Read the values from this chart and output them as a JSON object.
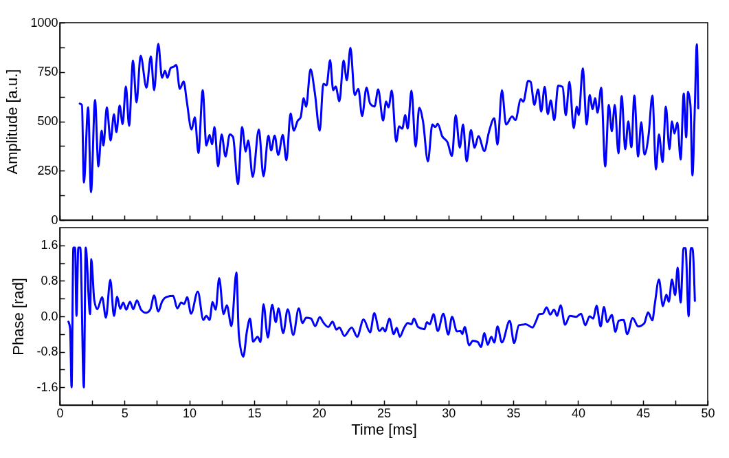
{
  "chart_data": [
    {
      "type": "line",
      "ylabel": "Amplitude [a.u.]",
      "xlim": [
        0,
        50
      ],
      "ylim": [
        0,
        1000
      ],
      "tick_labels": "y",
      "grid": false,
      "marker": "none",
      "line_style": "solid",
      "xticks": [
        0,
        {
          "value": 2.5,
          "label": null
        },
        {
          "value": 5,
          "label": null
        },
        {
          "value": 7.5,
          "label": null
        },
        {
          "value": 10,
          "label": null
        },
        {
          "value": 12.5,
          "label": null
        },
        {
          "value": 15,
          "label": null
        },
        {
          "value": 17.5,
          "label": null
        },
        {
          "value": 20,
          "label": null
        },
        {
          "value": 22.5,
          "label": null
        },
        {
          "value": 25,
          "label": null
        },
        {
          "value": 27.5,
          "label": null
        },
        {
          "value": 30,
          "label": null
        },
        {
          "value": 32.5,
          "label": null
        },
        {
          "value": 35,
          "label": null
        },
        {
          "value": 37.5,
          "label": null
        },
        {
          "value": 40,
          "label": null
        },
        {
          "value": 42.5,
          "label": null
        },
        {
          "value": 45,
          "label": null
        },
        {
          "value": 47.5,
          "label": null
        },
        {
          "value": 50,
          "label": null
        }
      ],
      "yticks": [
        0,
        {
          "value": 125,
          "label": null
        },
        250,
        {
          "value": 375,
          "label": null
        },
        500,
        {
          "value": 625,
          "label": null
        },
        750,
        {
          "value": 875,
          "label": null
        },
        1000
      ],
      "series": [
        {
          "color": "#0000ff",
          "x": [
            1.54,
            1.71,
            1.86,
            2.19,
            2.41,
            2.72,
            2.98,
            3.23,
            3.37,
            3.63,
            3.92,
            4.18,
            4.37,
            4.62,
            4.85,
            5.1,
            5.35,
            5.65,
            5.92,
            6.24,
            6.69,
            7.03,
            7.28,
            7.6,
            7.89,
            8.12,
            8.31,
            8.56,
            8.8,
            8.99,
            9.26,
            9.56,
            9.79,
            10.17,
            10.42,
            10.7,
            11.03,
            11.31,
            11.56,
            11.75,
            11.94,
            12.22,
            12.49,
            12.79,
            13.12,
            13.37,
            13.75,
            14.07,
            14.35,
            14.54,
            14.89,
            15.36,
            15.72,
            16.1,
            16.31,
            16.58,
            16.86,
            17.21,
            17.49,
            17.81,
            18.06,
            18.35,
            18.59,
            18.82,
            19.01,
            19.35,
            19.68,
            20.06,
            20.34,
            20.59,
            20.86,
            21.1,
            21.29,
            21.58,
            21.9,
            22.15,
            22.43,
            22.76,
            23.04,
            23.33,
            23.67,
            23.95,
            24.29,
            24.57,
            24.95,
            25.18,
            25.37,
            25.62,
            25.96,
            26.19,
            26.43,
            26.66,
            26.85,
            27.14,
            27.46,
            27.74,
            28.03,
            28.41,
            28.75,
            28.98,
            29.17,
            29.51,
            29.92,
            30.27,
            30.55,
            30.87,
            31.12,
            31.4,
            31.73,
            32.01,
            32.31,
            32.77,
            33.11,
            33.53,
            33.78,
            34.12,
            34.44,
            34.91,
            35.16,
            35.58,
            35.77,
            36.15,
            36.34,
            36.62,
            36.91,
            37.15,
            37.42,
            37.66,
            37.89,
            38.16,
            38.46,
            38.8,
            39.05,
            39.33,
            39.66,
            39.9,
            40.05,
            40.36,
            40.66,
            40.89,
            41.12,
            41.31,
            41.5,
            41.78,
            42.09,
            42.37,
            42.6,
            42.83,
            43.11,
            43.36,
            43.64,
            43.87,
            44.11,
            44.34,
            44.63,
            44.87,
            45.12,
            45.44,
            45.73,
            46.01,
            46.24,
            46.52,
            46.77,
            47.05,
            47.24,
            47.43,
            47.66,
            47.91,
            48.15,
            48.34,
            48.48,
            48.67,
            48.82,
            49.01,
            49.16,
            49.27
          ],
          "values": [
            590,
            583,
            191,
            571,
            141,
            608,
            272,
            453,
            378,
            571,
            403,
            536,
            446,
            580,
            486,
            677,
            478,
            808,
            596,
            833,
            671,
            829,
            658,
            893,
            721,
            756,
            721,
            771,
            777,
            786,
            665,
            702,
            608,
            459,
            521,
            340,
            658,
            378,
            431,
            384,
            471,
            272,
            434,
            322,
            434,
            421,
            182,
            471,
            347,
            403,
            219,
            459,
            222,
            428,
            353,
            428,
            330,
            431,
            303,
            540,
            453,
            502,
            521,
            618,
            574,
            764,
            646,
            453,
            690,
            683,
            810,
            658,
            677,
            602,
            808,
            708,
            873,
            633,
            665,
            527,
            671,
            590,
            575,
            662,
            504,
            600,
            571,
            656,
            397,
            475,
            463,
            531,
            463,
            656,
            372,
            569,
            500,
            297,
            484,
            471,
            488,
            425,
            394,
            325,
            531,
            367,
            484,
            297,
            456,
            367,
            425,
            350,
            444,
            516,
            382,
            658,
            484,
            525,
            506,
            612,
            600,
            706,
            700,
            584,
            662,
            550,
            675,
            537,
            606,
            506,
            681,
            675,
            531,
            700,
            466,
            575,
            531,
            768,
            484,
            633,
            562,
            618,
            544,
            671,
            272,
            584,
            450,
            584,
            338,
            628,
            359,
            500,
            369,
            631,
            322,
            496,
            332,
            431,
            631,
            257,
            434,
            294,
            575,
            359,
            500,
            438,
            494,
            307,
            641,
            419,
            650,
            581,
            226,
            581,
            890,
            566
          ]
        }
      ]
    },
    {
      "type": "line",
      "xlabel": "Time [ms]",
      "ylabel": "Phase [rad]",
      "xlim": [
        0,
        50
      ],
      "ylim": [
        -2,
        2
      ],
      "grid": false,
      "marker": "none",
      "line_style": "solid",
      "xticks": [
        0,
        {
          "value": 2.5,
          "label": null
        },
        5,
        {
          "value": 7.5,
          "label": null
        },
        10,
        {
          "value": 12.5,
          "label": null
        },
        15,
        {
          "value": 17.5,
          "label": null
        },
        20,
        {
          "value": 22.5,
          "label": null
        },
        25,
        {
          "value": 27.5,
          "label": null
        },
        30,
        {
          "value": 32.5,
          "label": null
        },
        35,
        {
          "value": 37.5,
          "label": null
        },
        40,
        {
          "value": 42.5,
          "label": null
        },
        45,
        {
          "value": 47.5,
          "label": null
        },
        50
      ],
      "yticks": [
        {
          "value": -1.6,
          "label": "-1.6"
        },
        {
          "value": -1.2,
          "label": null
        },
        {
          "value": -0.8,
          "label": "-0.8"
        },
        {
          "value": -0.4,
          "label": null
        },
        {
          "value": 0,
          "label": "0.0"
        },
        {
          "value": 0.4,
          "label": null
        },
        {
          "value": 0.8,
          "label": "0.8"
        },
        {
          "value": 1.2,
          "label": null
        },
        {
          "value": 1.6,
          "label": "1.6"
        }
      ],
      "series": [
        {
          "color": "#0000ff",
          "x": [
            0.67,
            0.8,
            0.91,
            1.05,
            1.18,
            1.29,
            1.43,
            1.58,
            1.86,
            2.0,
            2.34,
            2.43,
            2.66,
            2.89,
            3.27,
            3.56,
            3.9,
            4.18,
            4.43,
            4.66,
            4.9,
            5.13,
            5.42,
            5.67,
            5.95,
            6.27,
            6.65,
            6.98,
            7.28,
            7.6,
            7.89,
            8.27,
            8.75,
            9.07,
            9.37,
            9.6,
            9.83,
            10.13,
            10.65,
            11.08,
            11.31,
            11.56,
            11.79,
            12.03,
            12.3,
            12.64,
            12.89,
            13.25,
            13.63,
            13.82,
            14.16,
            14.45,
            14.68,
            14.92,
            15.27,
            15.49,
            15.72,
            16.06,
            16.39,
            16.67,
            16.88,
            17.24,
            17.59,
            18.02,
            18.44,
            18.73,
            19.01,
            19.39,
            19.71,
            20.06,
            20.34,
            20.72,
            21.05,
            21.35,
            21.58,
            21.96,
            22.53,
            22.95,
            23.44,
            23.95,
            24.27,
            24.67,
            24.92,
            25.11,
            25.43,
            25.77,
            26.0,
            26.24,
            26.57,
            26.85,
            27.14,
            27.33,
            27.65,
            28.14,
            28.33,
            28.56,
            28.84,
            29.17,
            29.6,
            29.98,
            30.27,
            30.65,
            30.93,
            31.06,
            31.25,
            31.59,
            31.88,
            32.26,
            32.5,
            32.77,
            33.02,
            33.3,
            33.53,
            33.78,
            34.12,
            34.72,
            35.06,
            35.43,
            35.96,
            36.49,
            36.72,
            37.0,
            37.28,
            37.57,
            37.85,
            38.14,
            38.38,
            38.65,
            38.99,
            39.37,
            39.85,
            40.23,
            40.55,
            40.89,
            41.17,
            41.42,
            41.74,
            41.99,
            42.25,
            42.6,
            42.88,
            43.13,
            43.51,
            43.79,
            44.21,
            44.64,
            45.1,
            45.4,
            45.73,
            45.92,
            46.24,
            46.54,
            46.81,
            47.0,
            47.24,
            47.49,
            47.68,
            47.91,
            48.14,
            48.29,
            48.53,
            48.7,
            48.82,
            49.01
          ],
          "values": [
            -0.12,
            -0.28,
            -1.6,
            1.55,
            1.55,
            0.01,
            1.55,
            1.55,
            -1.6,
            1.55,
            0.05,
            1.29,
            0.37,
            0.16,
            0.43,
            -0.03,
            0.82,
            0.01,
            0.44,
            0.17,
            0.31,
            0.15,
            0.33,
            0.16,
            0.36,
            0.15,
            0.08,
            0.15,
            0.47,
            0.11,
            0.33,
            0.44,
            0.46,
            0.18,
            0.31,
            0.28,
            0.43,
            0.06,
            0.56,
            -0.08,
            0.01,
            -0.08,
            0.32,
            0.15,
            0.86,
            0.05,
            0.25,
            -0.22,
            0.99,
            -0.42,
            -0.91,
            -0.32,
            -0.05,
            -0.57,
            -0.46,
            -0.58,
            0.27,
            -0.48,
            0.26,
            -0.13,
            0.18,
            -0.38,
            0.16,
            -0.42,
            0.18,
            -0.15,
            -0.03,
            -0.05,
            -0.22,
            -0.02,
            -0.14,
            -0.24,
            -0.12,
            -0.3,
            -0.25,
            -0.44,
            -0.25,
            -0.46,
            -0.07,
            -0.36,
            0.07,
            -0.33,
            -0.26,
            -0.34,
            -0.05,
            -0.4,
            -0.26,
            -0.46,
            -0.26,
            -0.15,
            -0.18,
            -0.05,
            -0.24,
            -0.29,
            -0.13,
            -0.18,
            0.05,
            -0.33,
            0.06,
            -0.41,
            -0.01,
            -0.34,
            -0.33,
            -0.4,
            -0.24,
            -0.65,
            -0.55,
            -0.58,
            -0.69,
            -0.38,
            -0.64,
            -0.46,
            -0.59,
            -0.23,
            -0.59,
            -0.1,
            -0.6,
            -0.2,
            -0.18,
            -0.25,
            -0.13,
            0.05,
            0.06,
            0.2,
            0.04,
            0.15,
            0.01,
            0.25,
            -0.19,
            0.01,
            -0.01,
            0.06,
            -0.2,
            0,
            -0.05,
            0.24,
            -0.23,
            0.21,
            -0.13,
            0.03,
            -0.35,
            -0.1,
            -0.08,
            -0.4,
            -0.04,
            -0.23,
            -0.16,
            0.09,
            -0.09,
            0.28,
            0.83,
            0.23,
            0.49,
            0.33,
            0.83,
            0.48,
            1.1,
            0.31,
            1.54,
            1.54,
            0,
            1.54,
            1.54,
            0.35
          ]
        }
      ]
    }
  ]
}
